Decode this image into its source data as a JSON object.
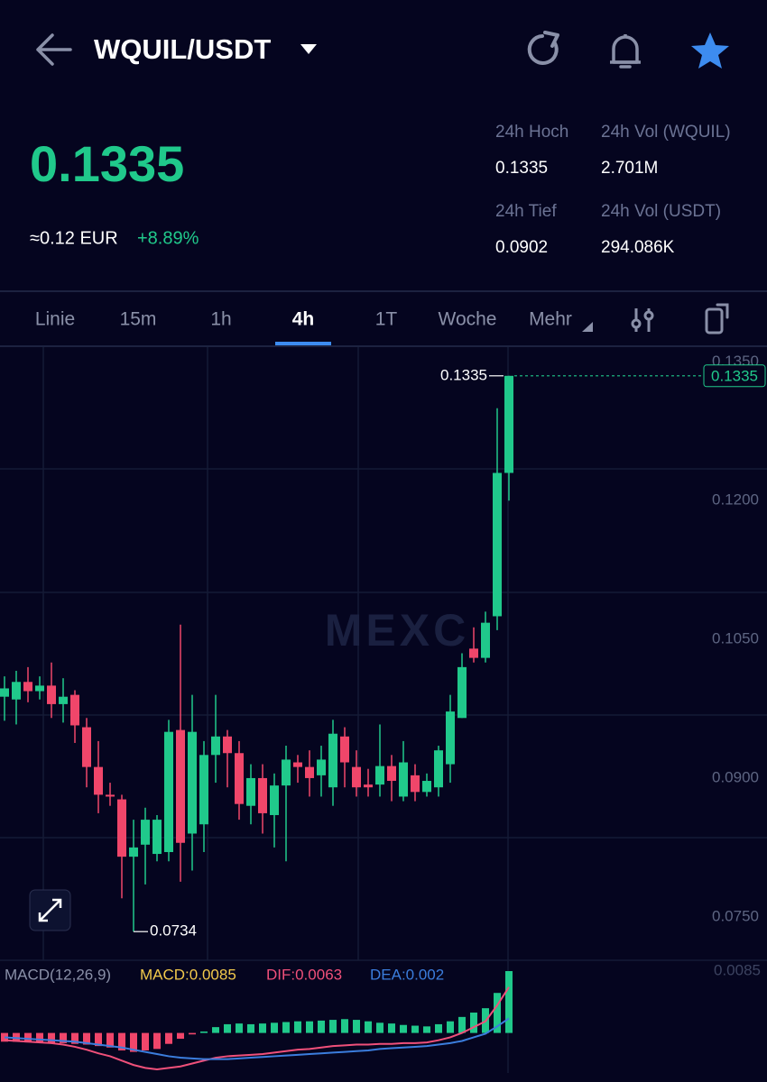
{
  "header": {
    "pair": "WQUIL/USDT"
  },
  "ticker": {
    "last_price": "0.1335",
    "fiat": "≈0.12 EUR",
    "change": "+8.89%",
    "stats": [
      {
        "label": "24h Hoch",
        "value": "0.1335"
      },
      {
        "label": "24h Vol (WQUIL)",
        "value": "2.701M"
      },
      {
        "label": "24h Tief",
        "value": "0.0902"
      },
      {
        "label": "24h Vol  (USDT)",
        "value": "294.086K"
      }
    ]
  },
  "tabs": [
    "Linie",
    "15m",
    "1h",
    "4h",
    "1T",
    "Woche",
    "Mehr"
  ],
  "active_tab": 3,
  "chart_data": [
    {
      "type": "candlestick",
      "watermark": "MEXC",
      "open": [
        0.0988,
        0.0985,
        0.1004,
        0.0994,
        0.1,
        0.098,
        0.099,
        0.0955,
        0.0912,
        0.0882,
        0.0877,
        0.0815,
        0.0828,
        0.0818,
        0.082,
        0.0952,
        0.084,
        0.085,
        0.0925,
        0.0945,
        0.0927,
        0.087,
        0.09,
        0.086,
        0.0892,
        0.0917,
        0.0912,
        0.0903,
        0.089,
        0.0945,
        0.0912,
        0.0893,
        0.0893,
        0.0913,
        0.088,
        0.0903,
        0.0885,
        0.089,
        0.0915,
        0.0965,
        0.104,
        0.103,
        0.1075,
        0.123
      ],
      "high": [
        0.101,
        0.1016,
        0.102,
        0.101,
        0.1025,
        0.1008,
        0.0995,
        0.0965,
        0.094,
        0.0895,
        0.0882,
        0.0855,
        0.0868,
        0.086,
        0.0963,
        0.1066,
        0.099,
        0.094,
        0.099,
        0.0952,
        0.094,
        0.0915,
        0.0915,
        0.0905,
        0.0935,
        0.0925,
        0.093,
        0.0935,
        0.0963,
        0.0955,
        0.093,
        0.091,
        0.0958,
        0.0925,
        0.094,
        0.0915,
        0.0905,
        0.0935,
        0.099,
        0.1035,
        0.1063,
        0.108,
        0.13,
        0.1335
      ],
      "low": [
        0.0962,
        0.0958,
        0.0982,
        0.0985,
        0.0965,
        0.096,
        0.0938,
        0.089,
        0.0862,
        0.087,
        0.077,
        0.0734,
        0.0785,
        0.081,
        0.081,
        0.0788,
        0.08,
        0.082,
        0.0895,
        0.089,
        0.0855,
        0.085,
        0.084,
        0.0825,
        0.081,
        0.0895,
        0.088,
        0.088,
        0.087,
        0.089,
        0.088,
        0.088,
        0.088,
        0.0875,
        0.0875,
        0.0875,
        0.088,
        0.088,
        0.0895,
        0.0965,
        0.1025,
        0.1025,
        0.106,
        0.12
      ],
      "close": [
        0.0997,
        0.1004,
        0.0994,
        0.1,
        0.098,
        0.0988,
        0.0957,
        0.0912,
        0.0882,
        0.088,
        0.0815,
        0.0825,
        0.0855,
        0.0855,
        0.095,
        0.083,
        0.095,
        0.0925,
        0.0945,
        0.0927,
        0.0872,
        0.09,
        0.0862,
        0.0892,
        0.092,
        0.0912,
        0.09,
        0.092,
        0.0948,
        0.0917,
        0.089,
        0.089,
        0.0913,
        0.0897,
        0.0917,
        0.0885,
        0.0897,
        0.093,
        0.0972,
        0.102,
        0.103,
        0.1068,
        0.123,
        0.1335
      ],
      "up_color": "#20c98b",
      "down_color": "#f0466a",
      "ylim": [
        0.0703,
        0.1366
      ],
      "yticks": [
        {
          "value": 0.135,
          "label": "0.1350"
        },
        {
          "value": 0.12,
          "label": "0.1200"
        },
        {
          "value": 0.105,
          "label": "0.1050"
        },
        {
          "value": 0.09,
          "label": "0.0900"
        },
        {
          "value": 0.075,
          "label": "0.0750"
        }
      ],
      "high_marker": {
        "value": 0.1335,
        "label": "0.1335"
      },
      "low_marker": {
        "value": 0.0734,
        "label": "0.0734"
      },
      "last_price": {
        "value": 0.1335,
        "label": "0.1335"
      }
    },
    {
      "type": "macd",
      "title": "MACD(12,26,9)",
      "ylim": [
        -0.0055,
        0.0085
      ],
      "yticks": [
        {
          "value": 0.0085,
          "label": "0.0085"
        }
      ],
      "series": [
        {
          "name": "MACD:0.0085",
          "color": "#f2c94c",
          "up_color": "#20c98b",
          "down_color": "#f0466a",
          "values": [
            -0.0012,
            -0.0012,
            -0.0013,
            -0.0013,
            -0.0014,
            -0.0014,
            -0.0015,
            -0.0016,
            -0.0018,
            -0.002,
            -0.0024,
            -0.0026,
            -0.0024,
            -0.0022,
            -0.0015,
            -0.0008,
            -0.0002,
            0.0002,
            0.0008,
            0.0012,
            0.0013,
            0.0012,
            0.0013,
            0.0014,
            0.0015,
            0.0016,
            0.0016,
            0.0017,
            0.0018,
            0.0019,
            0.0018,
            0.0016,
            0.0014,
            0.0013,
            0.0011,
            0.001,
            0.0009,
            0.0012,
            0.0016,
            0.0022,
            0.0028,
            0.0034,
            0.0055,
            0.0085
          ]
        },
        {
          "name": "DIF:0.0063",
          "color": "#f0507a",
          "values": [
            -0.001,
            -0.0011,
            -0.0012,
            -0.0013,
            -0.0014,
            -0.0016,
            -0.0019,
            -0.0023,
            -0.0028,
            -0.0032,
            -0.0038,
            -0.0044,
            -0.0048,
            -0.005,
            -0.0048,
            -0.0046,
            -0.0042,
            -0.0038,
            -0.0034,
            -0.0032,
            -0.0031,
            -0.003,
            -0.0029,
            -0.0027,
            -0.0025,
            -0.0023,
            -0.0022,
            -0.002,
            -0.0018,
            -0.0017,
            -0.0016,
            -0.0016,
            -0.0015,
            -0.0015,
            -0.0014,
            -0.0014,
            -0.0013,
            -0.001,
            -0.0006,
            0.0,
            0.0008,
            0.0016,
            0.0038,
            0.0063
          ]
        },
        {
          "name": "DEA:0.002",
          "color": "#3b7ddd",
          "values": [
            -0.0006,
            -0.0007,
            -0.0008,
            -0.0009,
            -0.001,
            -0.0011,
            -0.0012,
            -0.0014,
            -0.0016,
            -0.0018,
            -0.002,
            -0.0023,
            -0.0026,
            -0.0029,
            -0.0032,
            -0.0034,
            -0.0035,
            -0.0036,
            -0.0036,
            -0.0036,
            -0.0035,
            -0.0034,
            -0.0033,
            -0.0032,
            -0.0031,
            -0.003,
            -0.0029,
            -0.0028,
            -0.0027,
            -0.0026,
            -0.0025,
            -0.0024,
            -0.0022,
            -0.0021,
            -0.002,
            -0.0019,
            -0.0018,
            -0.0016,
            -0.0014,
            -0.0011,
            -0.0006,
            -0.0001,
            0.0009,
            0.002
          ]
        }
      ]
    }
  ]
}
